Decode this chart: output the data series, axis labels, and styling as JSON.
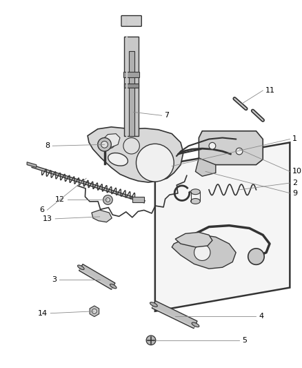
{
  "bg": "#ffffff",
  "fw": 4.38,
  "fh": 5.33,
  "dpi": 100,
  "lc": "#888888",
  "pc": "#555555",
  "fs": 8
}
